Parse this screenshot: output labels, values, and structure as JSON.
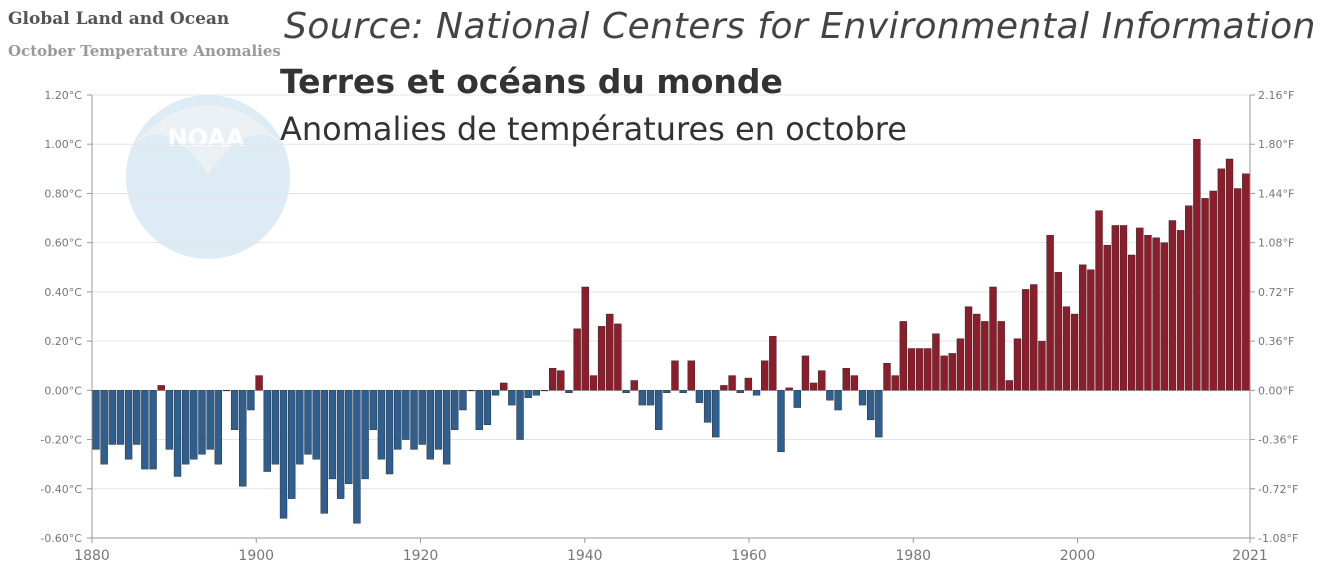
{
  "source": "Source: National Centers for Environmental Information",
  "original_title": "Global Land and Ocean",
  "original_subtitle": "October Temperature Anomalies",
  "overlay_title": "Terres et océans du monde",
  "overlay_subtitle": "Anomalies de températures en octobre",
  "logo_text": "NOAA",
  "colors": {
    "positive": "#8c1e2b",
    "negative": "#2f5f8f",
    "grid": "#e4e4e4",
    "axis": "#999999"
  },
  "chart_data": {
    "type": "bar",
    "title": "Global Land and Ocean",
    "subtitle": "October Temperature Anomalies",
    "x_start": 1880,
    "x_end": 2021,
    "ylim": [
      -0.6,
      1.2
    ],
    "y_ticks": [
      -0.6,
      -0.4,
      -0.2,
      0.0,
      0.2,
      0.4,
      0.6,
      0.8,
      1.0,
      1.2
    ],
    "y_tick_labels": [
      "-0.60°C",
      "-0.40°C",
      "-0.20°C",
      "0.00°C",
      "0.20°C",
      "0.40°C",
      "0.60°C",
      "0.80°C",
      "1.00°C",
      "1.20°C"
    ],
    "y2_tick_labels": [
      "-1.08°F",
      "-0.72°F",
      "-0.36°F",
      "0.00°F",
      "0.36°F",
      "0.72°F",
      "1.08°F",
      "1.44°F",
      "1.80°F",
      "2.16°F"
    ],
    "x_ticks": [
      1880,
      1900,
      1920,
      1940,
      1960,
      1980,
      2000,
      2021
    ],
    "values": [
      -0.24,
      -0.3,
      -0.22,
      -0.22,
      -0.28,
      -0.22,
      -0.32,
      -0.32,
      0.02,
      -0.24,
      -0.35,
      -0.3,
      -0.28,
      -0.26,
      -0.24,
      -0.3,
      0.0,
      -0.16,
      -0.39,
      -0.08,
      0.06,
      -0.33,
      -0.3,
      -0.52,
      -0.44,
      -0.3,
      -0.26,
      -0.28,
      -0.5,
      -0.36,
      -0.44,
      -0.38,
      -0.54,
      -0.36,
      -0.16,
      -0.28,
      -0.34,
      -0.24,
      -0.2,
      -0.24,
      -0.22,
      -0.28,
      -0.24,
      -0.3,
      -0.16,
      -0.08,
      0.0,
      -0.16,
      -0.14,
      -0.02,
      0.03,
      -0.06,
      -0.2,
      -0.03,
      -0.02,
      0.0,
      0.09,
      0.08,
      -0.01,
      0.25,
      0.42,
      0.06,
      0.26,
      0.31,
      0.27,
      -0.01,
      0.04,
      -0.06,
      -0.06,
      -0.16,
      -0.01,
      0.12,
      -0.01,
      0.12,
      -0.05,
      -0.13,
      -0.19,
      0.02,
      0.06,
      -0.01,
      0.05,
      -0.02,
      0.12,
      0.22,
      -0.25,
      0.01,
      -0.07,
      0.14,
      0.03,
      0.08,
      -0.04,
      -0.08,
      0.09,
      0.06,
      -0.06,
      -0.12,
      -0.19,
      0.11,
      0.06,
      0.28,
      0.17,
      0.17,
      0.17,
      0.23,
      0.14,
      0.15,
      0.21,
      0.34,
      0.31,
      0.28,
      0.42,
      0.28,
      0.04,
      0.21,
      0.41,
      0.43,
      0.2,
      0.63,
      0.48,
      0.34,
      0.31,
      0.51,
      0.49,
      0.73,
      0.59,
      0.67,
      0.67,
      0.55,
      0.66,
      0.63,
      0.62,
      0.6,
      0.69,
      0.65,
      0.75,
      1.02,
      0.78,
      0.81,
      0.9,
      0.94,
      0.82,
      0.88
    ]
  }
}
